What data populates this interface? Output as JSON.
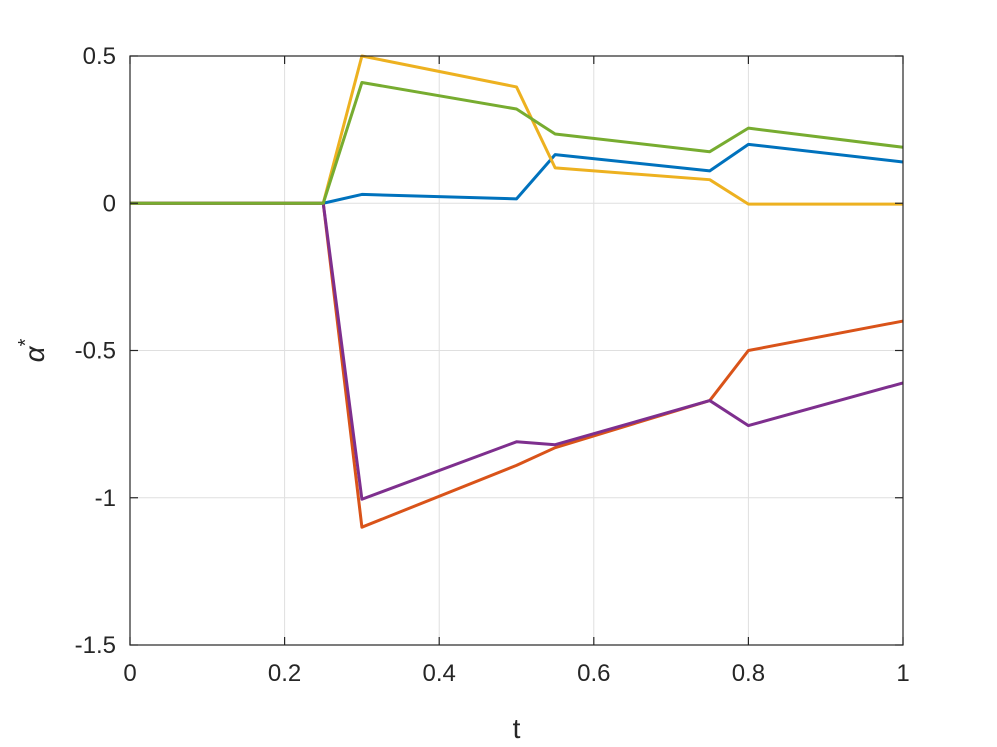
{
  "chart_data": {
    "type": "line",
    "title": "",
    "xlabel": "t",
    "ylabel_base": "α",
    "ylabel_sup": "*",
    "xlim": [
      0,
      1
    ],
    "ylim": [
      -1.5,
      0.5
    ],
    "xticks": [
      0,
      0.2,
      0.4,
      0.6,
      0.8,
      1
    ],
    "xtick_labels": [
      "0",
      "0.2",
      "0.4",
      "0.6",
      "0.8",
      "1"
    ],
    "yticks": [
      -1.5,
      -1,
      -0.5,
      0,
      0.5
    ],
    "ytick_labels": [
      "-1.5",
      "-1",
      "-0.5",
      "0",
      "0.5"
    ],
    "grid": true,
    "legend": "none",
    "axes_color": "#262626",
    "grid_color": "#dfdfdf",
    "series": [
      {
        "color": "#0072bd",
        "x": [
          0,
          0.25,
          0.3,
          0.5,
          0.55,
          0.75,
          0.8,
          1
        ],
        "y": [
          0,
          0,
          0.03,
          0.015,
          0.165,
          0.11,
          0.2,
          0.14
        ]
      },
      {
        "color": "#d95319",
        "x": [
          0,
          0.25,
          0.3,
          0.5,
          0.55,
          0.75,
          0.8,
          1
        ],
        "y": [
          0,
          0,
          -1.1,
          -0.89,
          -0.83,
          -0.67,
          -0.5,
          -0.4
        ]
      },
      {
        "color": "#edb120",
        "x": [
          0,
          0.25,
          0.3,
          0.5,
          0.55,
          0.75,
          0.8,
          1
        ],
        "y": [
          0,
          0,
          0.5,
          0.395,
          0.12,
          0.08,
          -0.003,
          -0.003
        ]
      },
      {
        "color": "#7e2f8e",
        "x": [
          0,
          0.25,
          0.3,
          0.5,
          0.55,
          0.75,
          0.8,
          1
        ],
        "y": [
          0,
          0,
          -1.005,
          -0.81,
          -0.82,
          -0.67,
          -0.755,
          -0.61
        ]
      },
      {
        "color": "#77ac30",
        "x": [
          0,
          0.25,
          0.3,
          0.5,
          0.55,
          0.75,
          0.8,
          1
        ],
        "y": [
          0,
          0,
          0.41,
          0.32,
          0.235,
          0.175,
          0.255,
          0.19
        ]
      }
    ]
  }
}
